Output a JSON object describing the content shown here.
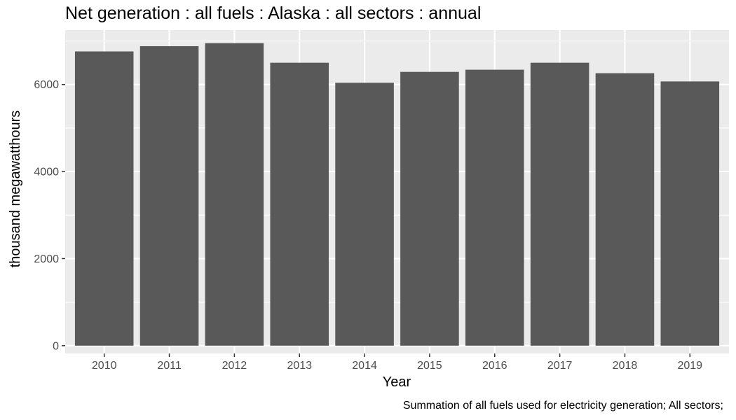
{
  "chart_data": {
    "type": "bar",
    "title": "Net generation : all fuels : Alaska : all sectors : annual",
    "xlabel": "Year",
    "ylabel": "thousand megawatthours",
    "caption": "Summation of all fuels used for electricity generation; All sectors;",
    "categories": [
      "2010",
      "2011",
      "2012",
      "2013",
      "2014",
      "2015",
      "2016",
      "2017",
      "2018",
      "2019"
    ],
    "values": [
      6760,
      6880,
      6950,
      6500,
      6040,
      6290,
      6340,
      6500,
      6260,
      6070
    ],
    "ylim": [
      -180,
      7250
    ],
    "yticks": [
      0,
      2000,
      4000,
      6000
    ],
    "grid": true,
    "colors": {
      "bar": "#595959",
      "panel": "#ebebeb",
      "grid": "#ffffff"
    }
  }
}
